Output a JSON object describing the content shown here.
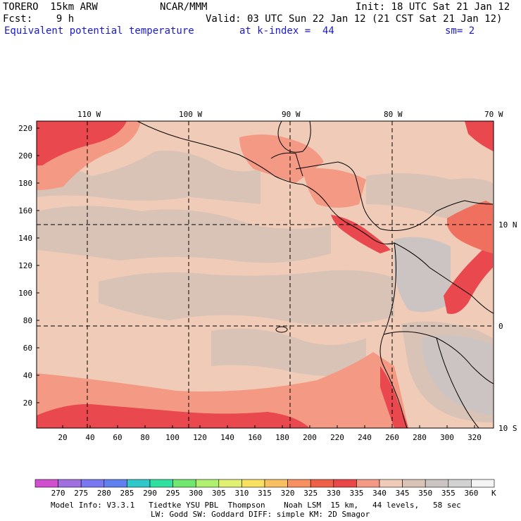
{
  "header": {
    "model": "TORERO  15km ARW",
    "center": "NCAR/MMM",
    "init": "Init: 18 UTC Sat 21 Jan 12",
    "fcst": "Fcst:    9 h",
    "valid": "Valid: 03 UTC Sun 22 Jan 12 (21 CST Sat 21 Jan 12)",
    "field": "Equivalent potential temperature",
    "level": "at k-index =  44",
    "smooth": "sm= 2"
  },
  "map": {
    "lon_labels": [
      "110 W",
      "100 W",
      "90 W",
      "80 W",
      "70 W"
    ],
    "lat_labels": [
      "10 N",
      "0",
      "10 S"
    ],
    "y_ticks": [
      "220",
      "200",
      "180",
      "160",
      "140",
      "120",
      "100",
      "80",
      "60",
      "40",
      "20"
    ],
    "x_ticks": [
      "20",
      "40",
      "60",
      "80",
      "100",
      "120",
      "140",
      "160",
      "180",
      "200",
      "220",
      "240",
      "260",
      "280",
      "300",
      "320"
    ],
    "colors": {
      "t_335": "#e8484e",
      "t_330": "#f07060",
      "t_325": "#f49a84",
      "t_340": "#f0ccb8",
      "t_345": "#d9c2b6",
      "t_350": "#ccc4c2",
      "t_355": "#d2d2d2"
    }
  },
  "colorbar": {
    "labels": [
      "270",
      "275",
      "280",
      "285",
      "290",
      "295",
      "300",
      "305",
      "310",
      "315",
      "320",
      "325",
      "330",
      "335",
      "340",
      "345",
      "350",
      "355",
      "360"
    ],
    "unit": "K",
    "colors": [
      "#d050d0",
      "#a070e0",
      "#7a78f0",
      "#6080f0",
      "#30c8c8",
      "#30e0a0",
      "#70e870",
      "#b0f070",
      "#e0f070",
      "#f8e060",
      "#f8c060",
      "#f89060",
      "#f06048",
      "#e84848",
      "#f49a84",
      "#f0ccb8",
      "#d9c2b6",
      "#ccc4c2",
      "#d2d2d2",
      "#f4f4f4"
    ]
  },
  "footer": {
    "line1": "Model Info: V3.3.1   Tiedtke YSU PBL  Thompson    Noah LSM  15 km,   44 levels,   58 sec",
    "line2": "LW: Godd SW: Goddard DIFF: simple KM: 2D Smagor"
  }
}
